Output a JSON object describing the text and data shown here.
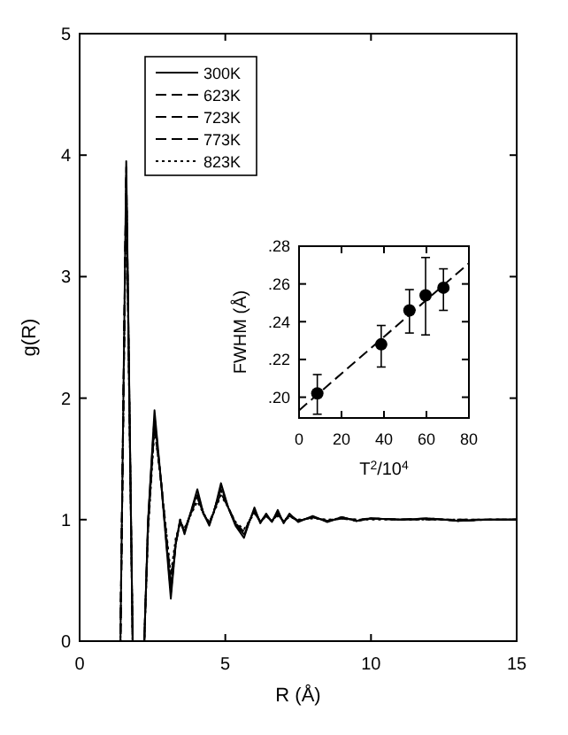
{
  "chart_data": [
    {
      "type": "line",
      "xlabel": "R (Å)",
      "ylabel": "g(R)",
      "xlim": [
        0,
        15
      ],
      "ylim": [
        0,
        5
      ],
      "xticks": [
        0,
        5,
        10,
        15
      ],
      "yticks": [
        0,
        1,
        2,
        3,
        4,
        5
      ],
      "legend": "top left",
      "x": [
        0,
        1.4,
        1.6,
        1.82,
        2.22,
        2.35,
        2.57,
        2.8,
        3.13,
        3.3,
        3.45,
        3.6,
        3.8,
        4.04,
        4.25,
        4.45,
        4.65,
        4.85,
        5.1,
        5.35,
        5.64,
        5.85,
        6.0,
        6.2,
        6.4,
        6.6,
        6.8,
        7.0,
        7.2,
        7.5,
        8,
        8.5,
        9,
        9.5,
        10,
        11,
        12,
        13,
        14,
        15
      ],
      "series": [
        {
          "name": "300K",
          "color": "#000000",
          "line_style": "solid",
          "values": [
            0,
            0,
            3.95,
            0,
            0,
            1.0,
            1.9,
            1.3,
            0.35,
            0.8,
            1.0,
            0.88,
            1.05,
            1.25,
            1.05,
            0.95,
            1.1,
            1.3,
            1.1,
            0.95,
            0.85,
            1.0,
            1.1,
            0.97,
            1.05,
            0.98,
            1.08,
            0.97,
            1.05,
            0.98,
            1.03,
            0.98,
            1.02,
            0.99,
            1.01,
            1.0,
            1.01,
            0.99,
            1.0,
            1.0
          ]
        },
        {
          "name": "623K",
          "color": "#000000",
          "line_style": "dashed",
          "values": [
            0,
            0,
            3.9,
            0,
            0,
            1.0,
            1.85,
            1.3,
            0.4,
            0.8,
            1.0,
            0.9,
            1.05,
            1.22,
            1.05,
            0.96,
            1.1,
            1.27,
            1.1,
            0.96,
            0.87,
            1.0,
            1.08,
            0.98,
            1.04,
            0.98,
            1.06,
            0.98,
            1.04,
            0.99,
            1.02,
            0.99,
            1.02,
            0.99,
            1.01,
            1.0,
            1.01,
            0.99,
            1.0,
            1.0
          ]
        },
        {
          "name": "723K",
          "color": "#000000",
          "line_style": "dashed",
          "values": [
            0,
            0,
            3.85,
            0,
            0,
            0.95,
            1.8,
            1.3,
            0.45,
            0.8,
            0.98,
            0.9,
            1.04,
            1.2,
            1.05,
            0.97,
            1.1,
            1.25,
            1.1,
            0.97,
            0.88,
            1.0,
            1.07,
            0.98,
            1.04,
            0.99,
            1.05,
            0.98,
            1.03,
            0.99,
            1.02,
            0.99,
            1.01,
            0.99,
            1.01,
            1.0,
            1.01,
            0.99,
            1.0,
            1.0
          ]
        },
        {
          "name": "773K",
          "color": "#000000",
          "line_style": "dashed",
          "values": [
            0,
            0,
            3.8,
            0,
            0,
            0.95,
            1.78,
            1.3,
            0.5,
            0.82,
            0.98,
            0.92,
            1.04,
            1.18,
            1.05,
            0.97,
            1.09,
            1.22,
            1.1,
            0.97,
            0.9,
            1.0,
            1.06,
            0.98,
            1.03,
            0.99,
            1.04,
            0.99,
            1.03,
            0.99,
            1.02,
            0.99,
            1.01,
            1.0,
            1.01,
            1.0,
            1.0,
            1.0,
            1.0,
            1.0
          ]
        },
        {
          "name": "823K",
          "color": "#000000",
          "line_style": "dotted",
          "values": [
            0,
            0,
            3.75,
            0,
            0,
            0.9,
            1.75,
            1.3,
            0.55,
            0.85,
            0.97,
            0.93,
            1.03,
            1.15,
            1.05,
            0.98,
            1.08,
            1.2,
            1.1,
            0.98,
            0.92,
            1.0,
            1.05,
            0.99,
            1.03,
            0.99,
            1.03,
            0.99,
            1.02,
            1.0,
            1.01,
            1.0,
            1.01,
            1.0,
            1.0,
            1.0,
            1.0,
            1.0,
            1.0,
            1.0
          ]
        }
      ]
    },
    {
      "type": "scatter",
      "xlabel": "T$^{2}$/10$^{4}$",
      "ylabel": "FWHM (Å)",
      "xlim": [
        0,
        80
      ],
      "ylim": [
        0.189,
        0.28
      ],
      "xticks": [
        0,
        20,
        40,
        60,
        80
      ],
      "yticks": [
        {
          "value": 0.2,
          "label": ".20"
        },
        {
          "value": 0.22,
          "label": ".22"
        },
        {
          "value": 0.24,
          "label": ".24"
        },
        {
          "value": 0.26,
          "label": ".26"
        },
        {
          "value": 0.28,
          "label": ".28"
        }
      ],
      "series": [
        {
          "color": "#000000",
          "marker": "circle",
          "x": [
            8.6,
            38.7,
            52,
            59.6,
            68
          ],
          "values": [
            0.202,
            0.228,
            0.246,
            0.254,
            0.258
          ],
          "errors": [
            [
              0.191,
              0.212
            ],
            [
              0.216,
              0.238
            ],
            [
              0.234,
              0.257
            ],
            [
              0.233,
              0.274
            ],
            [
              0.246,
              0.268
            ]
          ]
        },
        {
          "type": "line",
          "color": "#000000",
          "line_style": "dashed",
          "x": [
            0,
            80
          ],
          "values": [
            0.193,
            0.271
          ]
        }
      ]
    }
  ]
}
